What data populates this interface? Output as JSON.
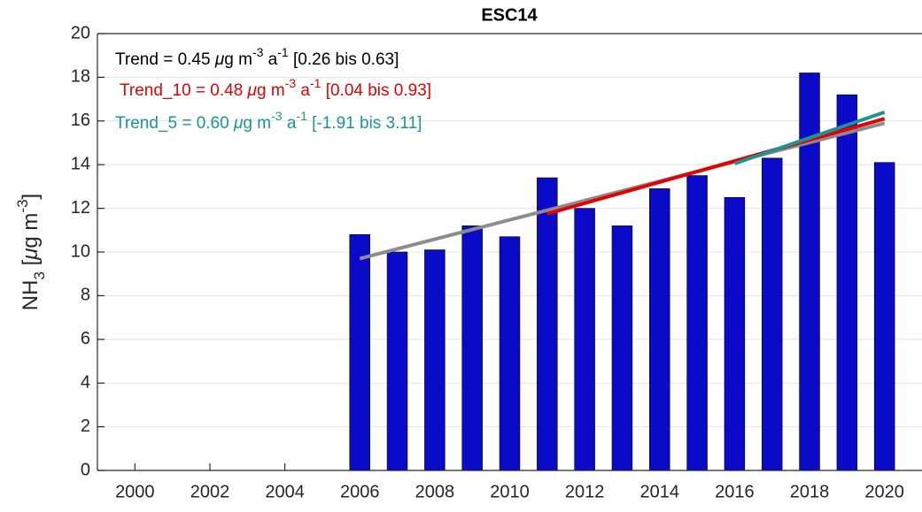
{
  "chart_data": {
    "type": "bar",
    "title": "ESC14",
    "ylabel_parts": [
      "NH",
      "3",
      " [",
      "μ",
      "g m",
      "-3",
      "]"
    ],
    "x": [
      2006,
      2007,
      2008,
      2009,
      2010,
      2011,
      2012,
      2013,
      2014,
      2015,
      2016,
      2017,
      2018,
      2019,
      2020
    ],
    "values": [
      10.8,
      10.0,
      10.1,
      11.2,
      10.7,
      13.4,
      12.0,
      11.2,
      12.9,
      13.5,
      12.5,
      14.3,
      18.2,
      17.2,
      14.1
    ],
    "color": "#0a0ac8",
    "xlim": [
      1999,
      2021
    ],
    "xticks": [
      2000,
      2002,
      2004,
      2006,
      2008,
      2010,
      2012,
      2014,
      2016,
      2018,
      2020
    ],
    "ylim": [
      0,
      20
    ],
    "yticks": [
      0,
      2,
      4,
      6,
      8,
      10,
      12,
      14,
      16,
      18,
      20
    ],
    "grid": true,
    "trends": [
      {
        "color": "#8c8c8c",
        "x": [
          2006,
          2020
        ],
        "values": [
          9.7,
          15.9
        ],
        "text_color": "#000000",
        "text_parts": [
          "Trend = 0.45 ",
          "μ",
          "g m",
          "-3",
          " a",
          "-1",
          " [0.26 bis 0.63]"
        ]
      },
      {
        "color": "#e60000",
        "x": [
          2011,
          2020
        ],
        "values": [
          11.75,
          16.1
        ],
        "text_color": "#e60000",
        "text_parts": [
          "Trend_10 = 0.48 ",
          "μ",
          "g m",
          "-3",
          " a",
          "-1",
          " [0.04 bis 0.93]"
        ]
      },
      {
        "color": "#1a9595",
        "x": [
          2016,
          2020
        ],
        "values": [
          14.05,
          16.4
        ],
        "text_color": "#1a9595",
        "text_parts": [
          "Trend_5 = 0.60 ",
          "μ",
          "g m",
          "-3",
          " a",
          "-1",
          " [-1.91 bis 3.11]"
        ]
      }
    ]
  }
}
